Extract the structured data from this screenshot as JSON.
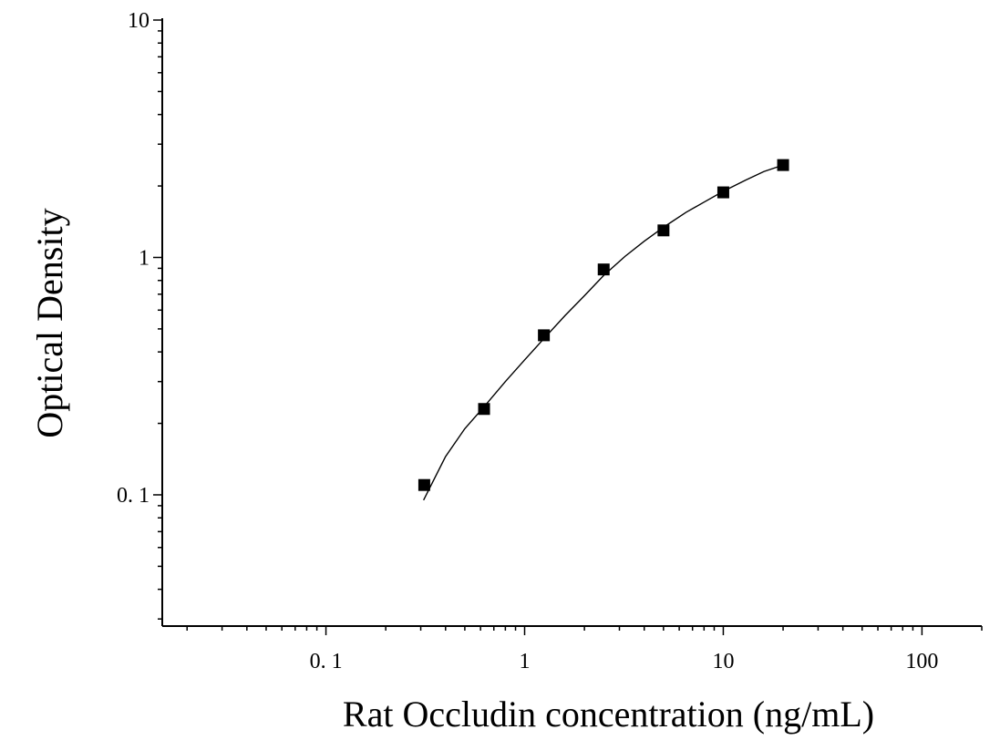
{
  "chart_data": {
    "type": "scatter",
    "title": "",
    "xlabel": "Rat Occludin concentration (ng/mL)",
    "ylabel": "Optical Density",
    "x_scale": "log",
    "y_scale": "log",
    "xlim": [
      0.015,
      200
    ],
    "ylim": [
      0.028,
      10
    ],
    "x_tick_labels": [
      "0. 1",
      "1",
      "10",
      "100"
    ],
    "y_tick_labels": [
      "0. 1",
      "1",
      "10"
    ],
    "grid": false,
    "marker_color": "#000000",
    "series": [
      {
        "x": [
          0.3125,
          0.625,
          1.25,
          2.5,
          5,
          10,
          20
        ],
        "y": [
          0.11,
          0.23,
          0.47,
          0.89,
          1.3,
          1.88,
          2.45
        ]
      }
    ],
    "fit_curve": {
      "x": [
        0.31,
        0.4,
        0.5,
        0.625,
        0.8,
        1.0,
        1.25,
        1.6,
        2.0,
        2.5,
        3.2,
        4.0,
        5.0,
        6.5,
        8.0,
        10,
        13,
        16,
        20
      ],
      "y": [
        0.095,
        0.145,
        0.19,
        0.235,
        0.3,
        0.37,
        0.455,
        0.57,
        0.69,
        0.84,
        1.01,
        1.17,
        1.34,
        1.55,
        1.71,
        1.9,
        2.12,
        2.3,
        2.45
      ]
    }
  }
}
